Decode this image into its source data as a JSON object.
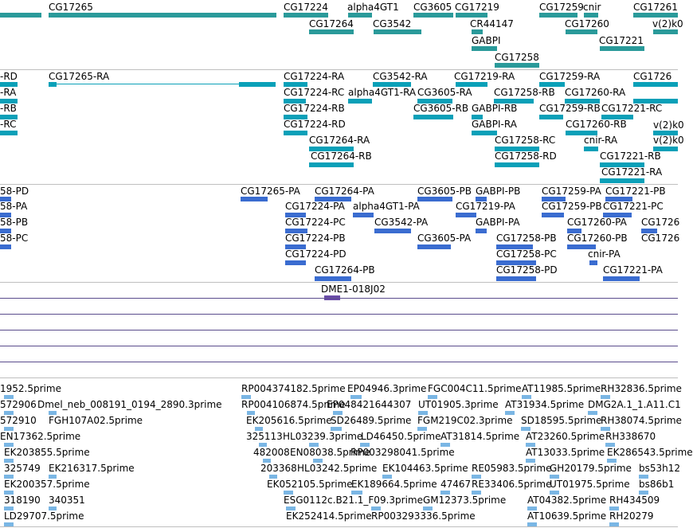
{
  "colors": {
    "gene": "#2a9a9a",
    "transcript": "#0aa0b8",
    "protein": "#3a6cd0",
    "clone": "#6a4ca8",
    "clone_line": "#5a4c8c",
    "est": "#7ab6e4",
    "separator": "#bfbfbf"
  },
  "tracks": {
    "genes": {
      "labels": [
        "CG17265",
        "CG17224",
        "alpha4GT1",
        "CG3605",
        "CG17219",
        "CG17259",
        "cnir",
        "CG17261",
        "CG17264",
        "CG3542",
        "CR44147",
        "CG17260",
        "GABPI",
        "CG17221",
        "v(2)k0",
        "CG17258"
      ]
    },
    "transcripts": {
      "labels": [
        "-RD",
        "CG17265-RA",
        "CG17224-RA",
        "CG3542-RA",
        "CG17219-RA",
        "CG17259-RA",
        "CG1726",
        "-RA",
        "CG17224-RC",
        "alpha4GT1-RA",
        "CG3605-RA",
        "CG17258-RB",
        "CG17260-RA",
        "-RB",
        "CG17224-RB",
        "CG3605-RB",
        "GABPI-RB",
        "CG17259-RB",
        "CG17221-RC",
        "-RC",
        "CG17224-RD",
        "GABPI-RA",
        "CG17260-RB",
        "v(2)k0",
        "CG17264-RA",
        "CG17258-RC",
        "cnir-RA",
        "v(2)k0",
        "CG17264-RB",
        "CG17258-RD",
        "CG17221-RB",
        "CG17221-RA"
      ]
    },
    "proteins": {
      "labels": [
        "58-PD",
        "CG17265-PA",
        "CG17264-PA",
        "CG3605-PB",
        "GABPI-PB",
        "CG17259-PA",
        "CG17221-PB",
        "58-PA",
        "CG17224-PA",
        "alpha4GT1-PA",
        "CG17219-PA",
        "CG17259-PB",
        "CG17221-PC",
        "58-PB",
        "CG17224-PC",
        "CG3542-PA",
        "GABPI-PA",
        "CG17260-PA",
        "CG1726",
        "58-PC",
        "CG17224-PB",
        "CG3605-PA",
        "CG17258-PB",
        "CG17260-PB",
        "CG1726",
        "CG17224-PD",
        "CG17258-PC",
        "cnir-PA",
        "CG17264-PB",
        "CG17258-PD",
        "CG17221-PA"
      ]
    },
    "clones": {
      "labels": [
        "DME1-018J02"
      ]
    },
    "ests": {
      "labels": [
        "1952.5prime",
        "RP004374182.5prime",
        "EP04946.3prime",
        "FGC004C11.5prime",
        "AT11985.5prime",
        "RH32836.5prime",
        "572906",
        "Dmel_neb_008191_0194_2890.3prime",
        "RP004106874.5prime",
        "EP048421644307",
        "UT01905.3prime",
        "AT31934.5prime",
        "DMG2A.1_1.A11.C1",
        "572910",
        "FGH107A02.5prime",
        "EK205616.5prime",
        "SD26489.5prime",
        "FGM219C02.3prime",
        "SD18595.5prime",
        "RH38074.5prime",
        "EN17362.5prime",
        "325113",
        "HL03239.3prime",
        "LD46450.5prime",
        "AT31814.5prime",
        "AT23260.5prime",
        "RH338670",
        "EK203855.5prime",
        "482008",
        "EN08038.5prime",
        "RP003298041.5prime",
        "AT13033.5prime",
        "EK286543.5prime",
        "325749",
        "EK216317.5prime",
        "203368",
        "HL03242.5prime",
        "EK104463.5prime",
        "RE05983.5prime",
        "GH20179.5prime",
        "bs53h12",
        "EK200357.5prime",
        "EK052105.5prime",
        "EK189664.5prime",
        "47467",
        "RE33406.5prime",
        "UT01975.5prime",
        "bs86b1",
        "318190",
        "340351",
        "ESG0112c.B21.1_F09.3prime",
        "GM12373.5prime",
        "AT04382.5prime",
        "RH434509",
        "LD29707.5prime",
        "EK252414.5prime",
        "RP003293336.5prime",
        "AT10639.5prime",
        "RH20279"
      ]
    }
  }
}
